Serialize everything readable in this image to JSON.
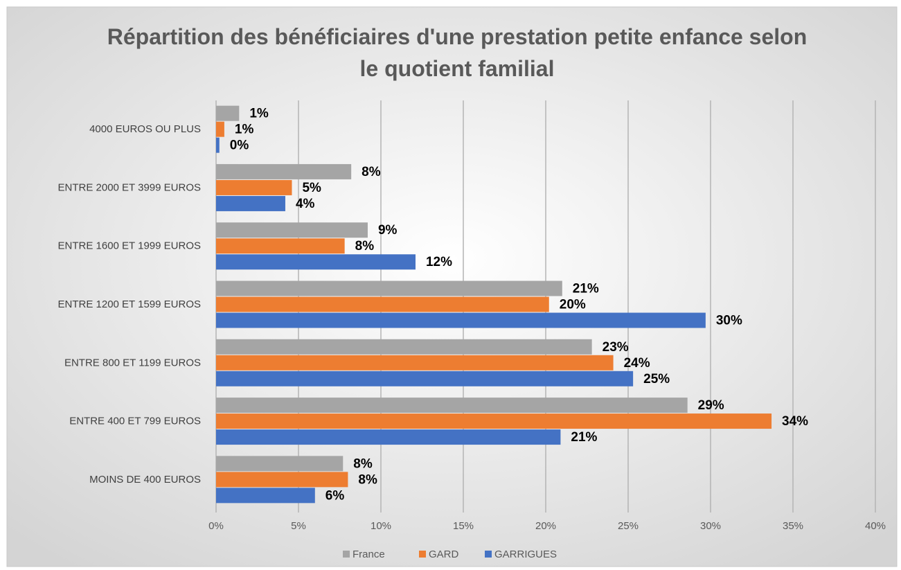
{
  "chart_data": {
    "type": "hbar",
    "title": "Répartition des bénéficiaires d'une prestation petite enfance selon le quotient familial",
    "categories": [
      "4000 EUROS OU PLUS",
      "ENTRE 2000 ET 3999 EUROS",
      "ENTRE 1600 ET 1999 EUROS",
      "ENTRE 1200 ET 1599 EUROS",
      "ENTRE 800 ET 1199 EUROS",
      "ENTRE 400 ET 799 EUROS",
      "MOINS DE 400 EUROS"
    ],
    "series": [
      {
        "name": "France",
        "color": "#a5a5a5",
        "values": [
          1.4,
          8.2,
          9.2,
          21.0,
          22.8,
          28.6,
          7.7
        ],
        "value_labels": [
          "1%",
          "8%",
          "9%",
          "21%",
          "23%",
          "29%",
          "8%"
        ]
      },
      {
        "name": "GARD",
        "color": "#ed7d31",
        "values": [
          0.5,
          4.6,
          7.8,
          20.2,
          24.1,
          33.7,
          8.0
        ],
        "value_labels": [
          "1%",
          "5%",
          "8%",
          "20%",
          "24%",
          "34%",
          "8%"
        ]
      },
      {
        "name": "GARRIGUES",
        "color": "#4472c4",
        "values": [
          0.2,
          4.2,
          12.1,
          29.7,
          25.3,
          20.9,
          6.0
        ],
        "value_labels": [
          "0%",
          "4%",
          "12%",
          "30%",
          "25%",
          "21%",
          "6%"
        ]
      }
    ],
    "xlim": [
      0,
      40
    ],
    "xticks": [
      {
        "value": 0,
        "label": "0%"
      },
      {
        "value": 5,
        "label": "5%"
      },
      {
        "value": 10,
        "label": "10%"
      },
      {
        "value": 15,
        "label": "15%"
      },
      {
        "value": 20,
        "label": "20%"
      },
      {
        "value": 25,
        "label": "25%"
      },
      {
        "value": 30,
        "label": "30%"
      },
      {
        "value": 35,
        "label": "35%"
      },
      {
        "value": 40,
        "label": "40%"
      }
    ],
    "grid": true,
    "legend": "bottom"
  }
}
